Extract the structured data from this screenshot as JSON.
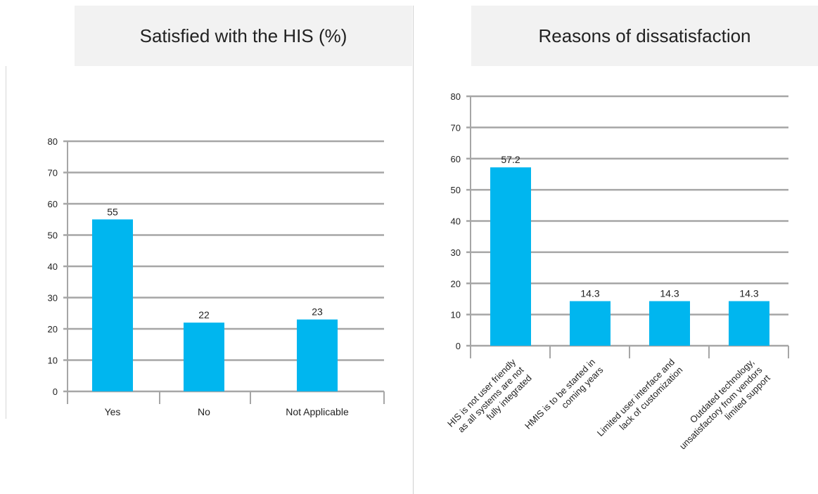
{
  "chart_data": [
    {
      "type": "bar",
      "title": "Satisfied with the HIS (%)",
      "categories": [
        "Yes",
        "No",
        "Not Applicable"
      ],
      "values": [
        55,
        22,
        23
      ],
      "data_labels": [
        "55",
        "22",
        "23"
      ],
      "ylim": [
        0,
        80
      ],
      "yticks": [
        0,
        10,
        20,
        30,
        40,
        50,
        60,
        70,
        80
      ],
      "grid": true,
      "bar_color": "#00b6ef"
    },
    {
      "type": "bar",
      "title": "Reasons of dissatisfaction",
      "categories": [
        [
          "HIS is not user friendly",
          "as all systems are not",
          "fully integrated"
        ],
        [
          "HMIS is to be started in",
          "coming years"
        ],
        [
          "Limited user interface and",
          "lack of customization"
        ],
        [
          "Outdated technology,",
          "unsatisfactory from vendors",
          "limited support"
        ]
      ],
      "values": [
        57.2,
        14.3,
        14.3,
        14.3
      ],
      "data_labels": [
        "57.2",
        "14.3",
        "14.3",
        "14.3"
      ],
      "ylim": [
        0,
        80
      ],
      "yticks": [
        0,
        10,
        20,
        30,
        40,
        50,
        60,
        70,
        80
      ],
      "grid": true,
      "bar_color": "#00b6ef"
    }
  ]
}
